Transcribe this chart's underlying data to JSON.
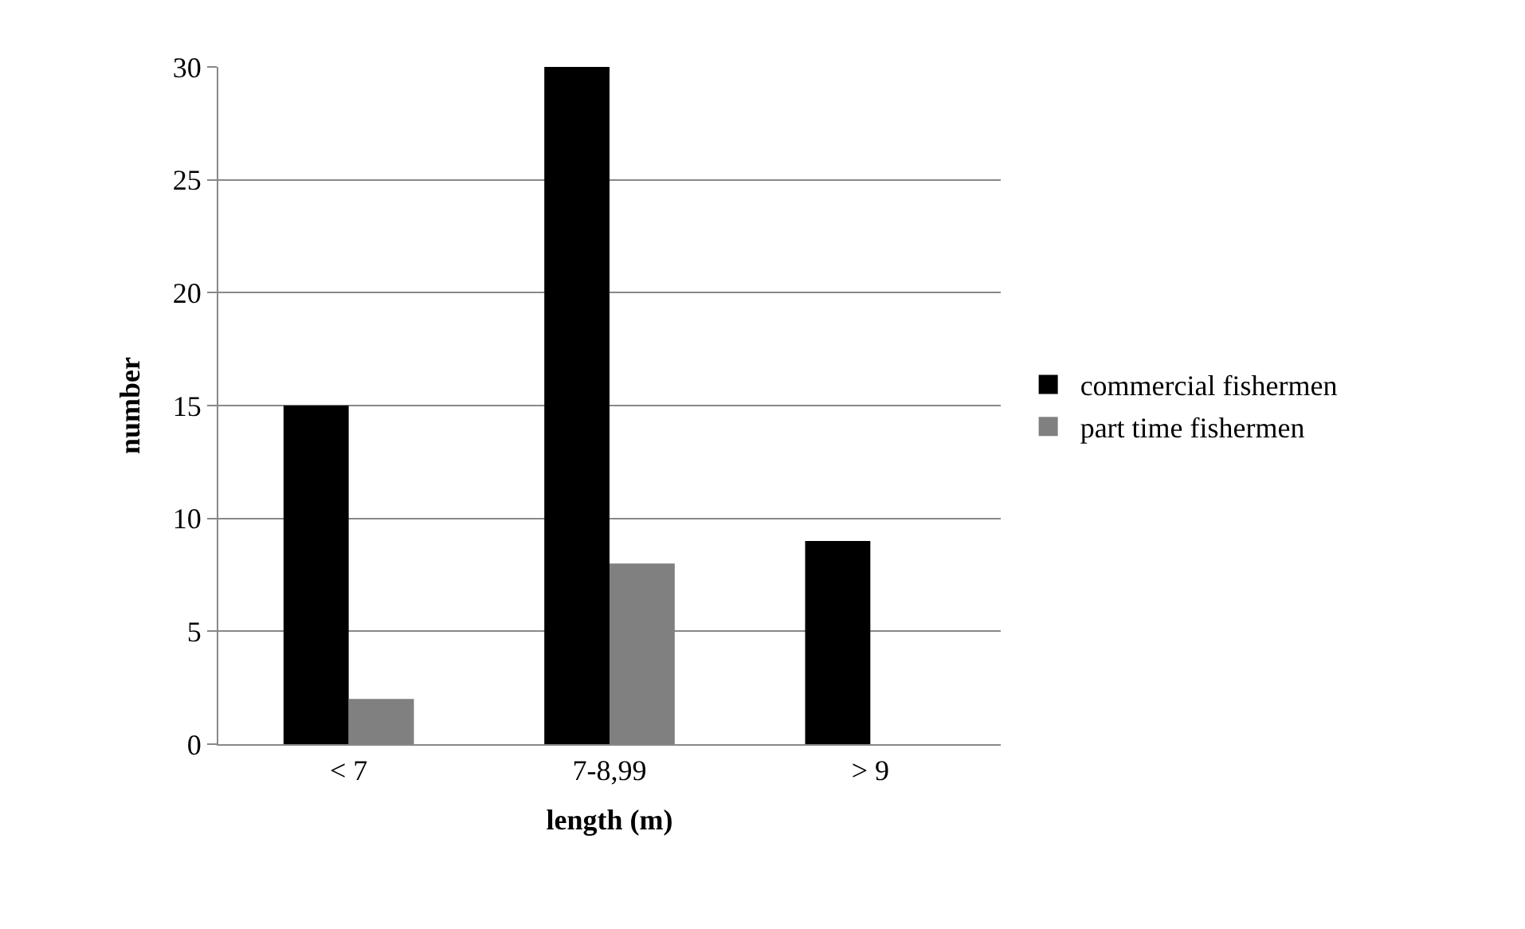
{
  "chart_data": {
    "type": "bar",
    "xlabel": "length (m)",
    "ylabel": "number",
    "categories": [
      "< 7",
      "7-8,99",
      "> 9"
    ],
    "series": [
      {
        "name": "commercial fishermen",
        "color": "#000000",
        "values": [
          15,
          30,
          9
        ]
      },
      {
        "name": "part time fishermen",
        "color": "#808080",
        "values": [
          2,
          8,
          0
        ]
      }
    ],
    "ylim": [
      0,
      30
    ],
    "yticks": [
      0,
      5,
      10,
      15,
      20,
      25,
      30
    ],
    "grid": "y",
    "legend": "right"
  }
}
